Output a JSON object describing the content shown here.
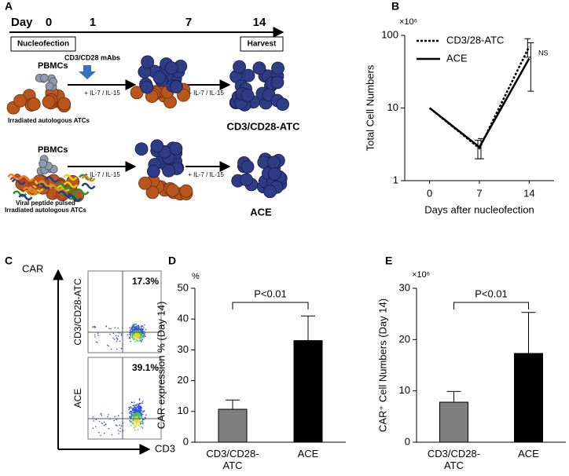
{
  "schematic": {
    "panel_label": "A",
    "day_label": "Day",
    "days": [
      "0",
      "1",
      "7",
      "14"
    ],
    "nucleofection": "Nucleofection",
    "harvest": "Harvest",
    "stimulus": "CD3/CD28 mAbs",
    "cytokines": [
      "+ IL-7 / IL-15",
      "+ IL-7 / IL-15",
      "+ IL-7 / IL-15",
      "+ IL-7 / IL-15"
    ],
    "row1": {
      "source": "PBMCs",
      "feeder": "Irradiated autologous ATCs",
      "product": "CD3/CD28-ATC"
    },
    "row2": {
      "source": "PBMCs",
      "feeder": "Viral peptide pulsed Irradiated autologous ATCs",
      "product": "ACE"
    }
  },
  "flow": {
    "panel_label": "C",
    "y_axis": "CAR",
    "x_axis": "CD3",
    "plots": [
      {
        "name": "CD3/CD28-ATC",
        "percent": "17.3%"
      },
      {
        "name": "ACE",
        "percent": "39.1%"
      }
    ]
  },
  "chart_data": [
    {
      "type": "line",
      "panel_label": "B",
      "y_unit": "×10⁶",
      "ylabel": "Total Cell Numbers",
      "xlabel": "Days after nucleofection",
      "categories": [
        "0",
        "7",
        "14"
      ],
      "log_scale": true,
      "ylim": [
        1,
        100
      ],
      "yticks": [
        1,
        10,
        100
      ],
      "annotation": "NS",
      "series": [
        {
          "name": "CD3/28-ATC",
          "color": "#000000",
          "line_style": "dotted",
          "values": [
            10,
            2.8,
            70
          ],
          "errors": [
            0,
            0.8,
            20
          ]
        },
        {
          "name": "ACE",
          "color": "#000000",
          "line_style": "solid",
          "values": [
            10,
            2.9,
            48
          ],
          "errors": [
            0,
            0.9,
            31
          ]
        }
      ]
    },
    {
      "type": "bar",
      "panel_label": "D",
      "y_unit": "%",
      "ylabel": "CAR expression % (Day 14)",
      "categories": [
        "CD3/CD28-ATC",
        "ACE"
      ],
      "values": [
        10.7,
        33
      ],
      "errors": [
        3,
        8
      ],
      "colors": [
        "#7f7f7f",
        "#000000"
      ],
      "ylim": [
        0,
        50
      ],
      "yticks": [
        0,
        10,
        20,
        30,
        40,
        50
      ],
      "annotation": "P<0.01"
    },
    {
      "type": "bar",
      "panel_label": "E",
      "y_unit": "×10⁶",
      "ylabel": "CAR⁺ Cell Numbers (Day 14)",
      "categories": [
        "CD3/CD28-ATC",
        "ACE"
      ],
      "values": [
        7.8,
        17.3
      ],
      "errors": [
        2.1,
        8
      ],
      "colors": [
        "#7f7f7f",
        "#000000"
      ],
      "ylim": [
        0,
        30
      ],
      "yticks": [
        0,
        10,
        20,
        30
      ],
      "annotation": "P<0.01"
    }
  ]
}
